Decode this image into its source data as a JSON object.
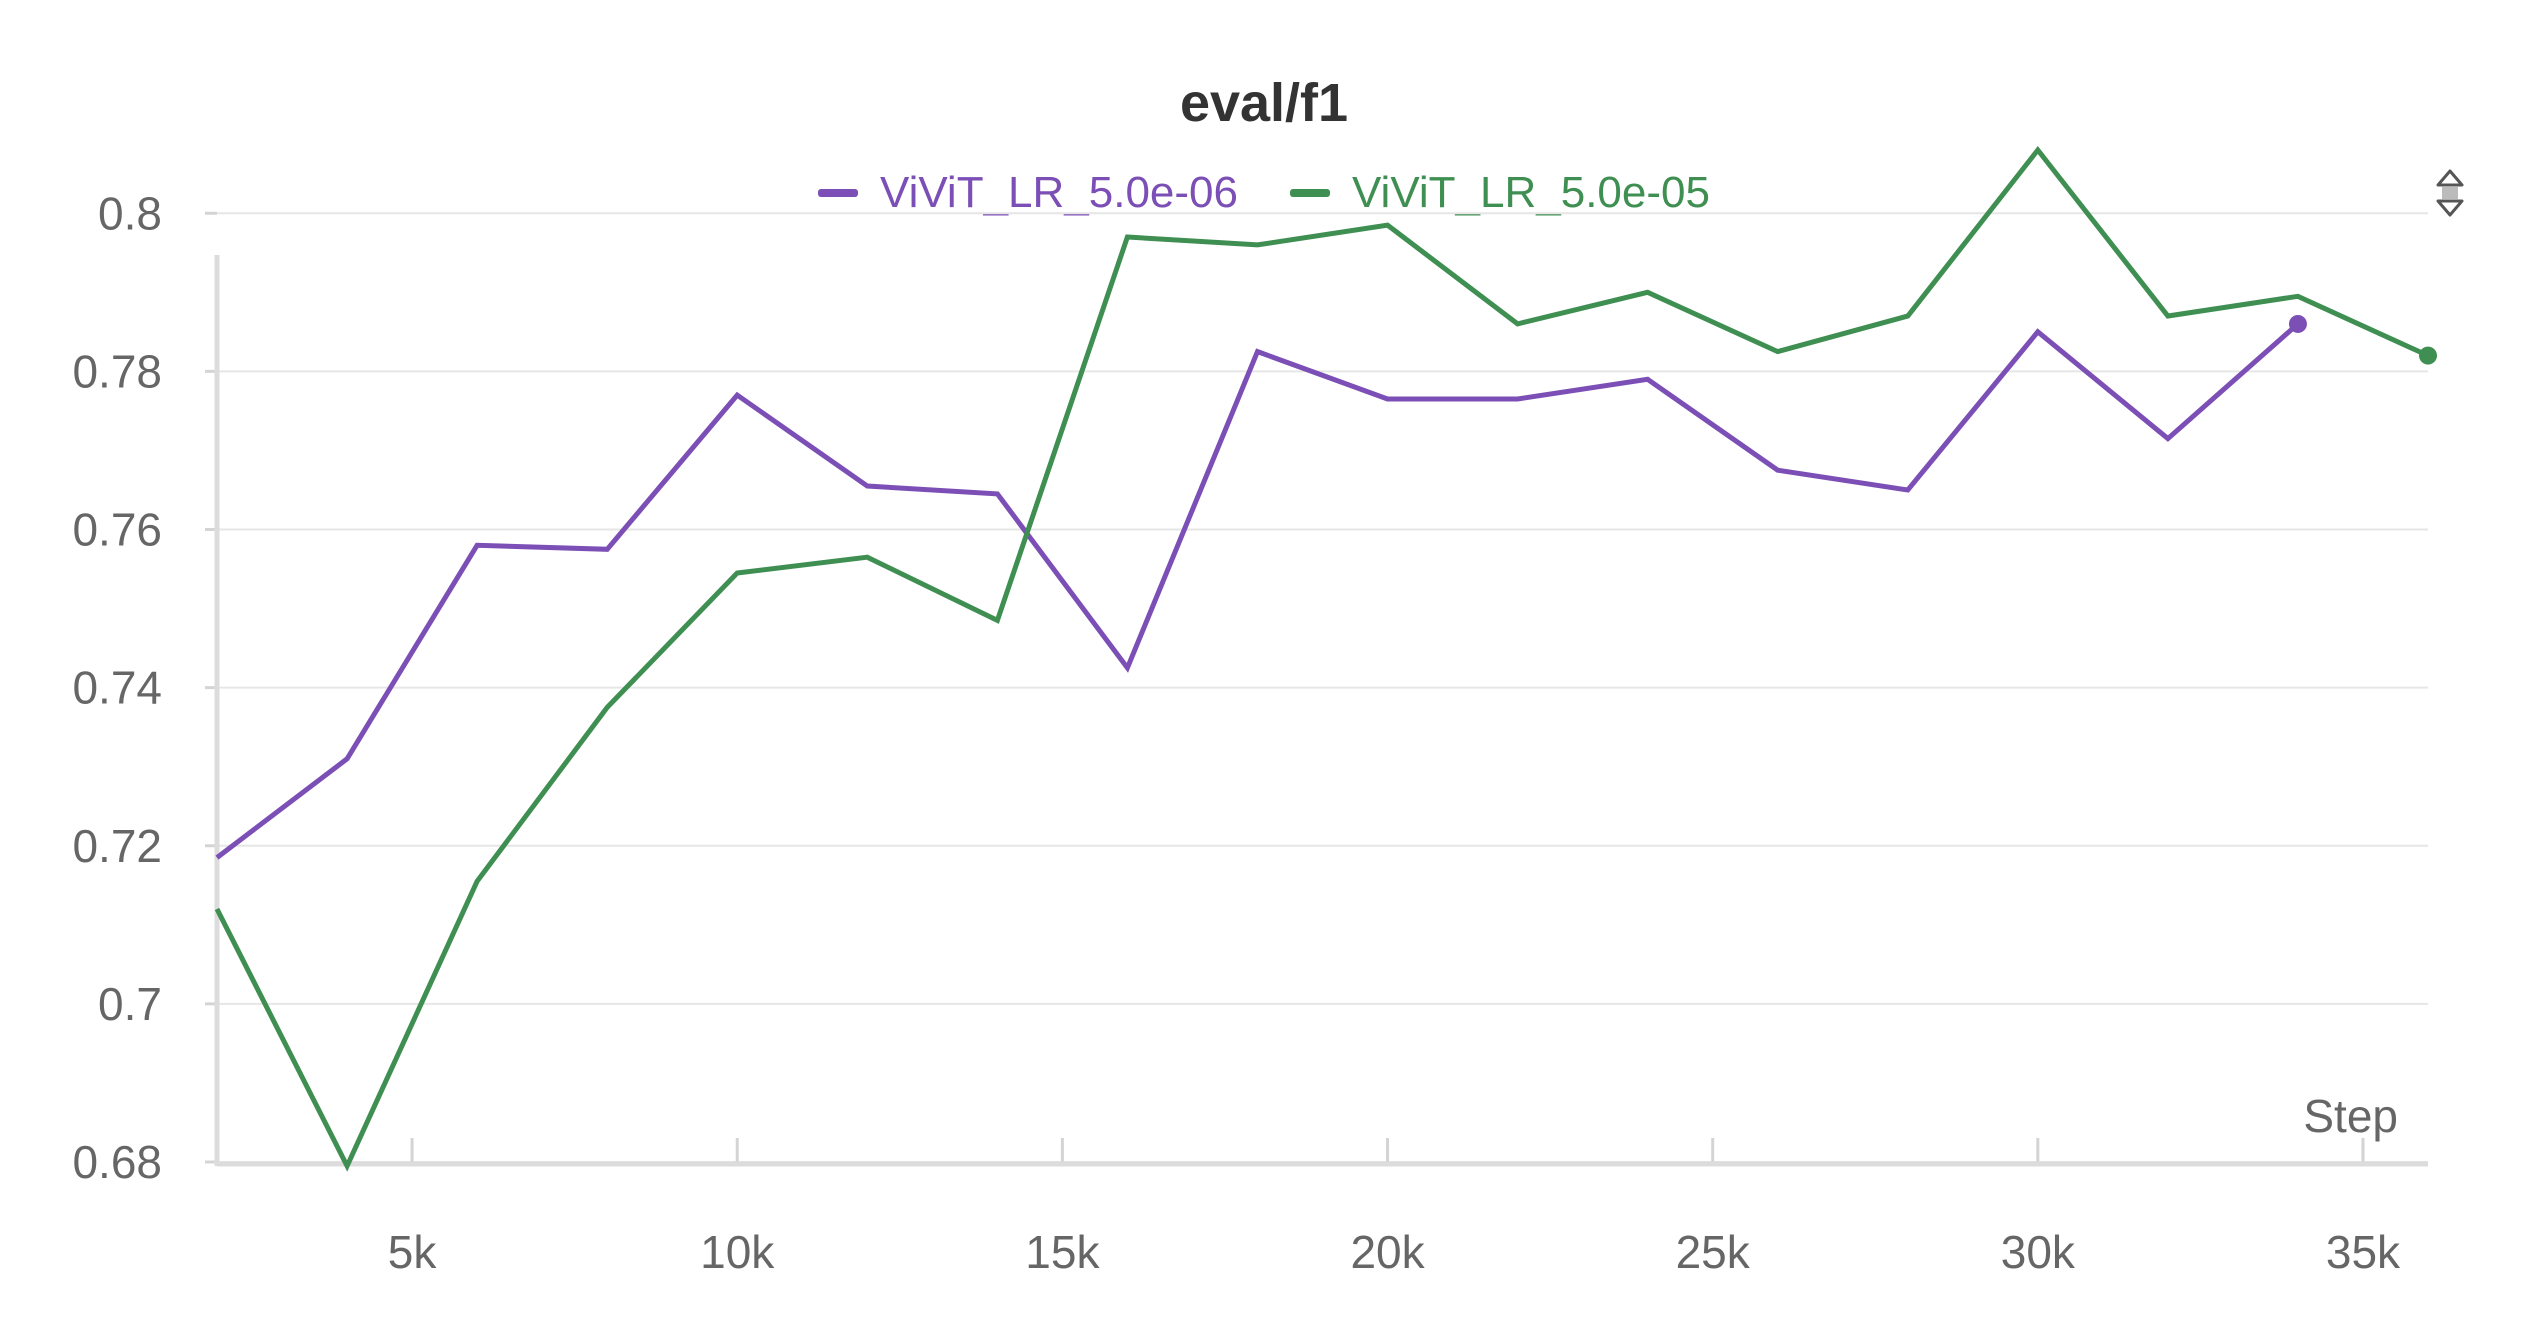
{
  "chart_data": {
    "type": "line",
    "title": "eval/f1",
    "xlabel": "Step",
    "ylabel": "",
    "xlim": [
      2000,
      36000
    ],
    "ylim": [
      0.68,
      0.808
    ],
    "x_ticks": [
      5000,
      10000,
      15000,
      20000,
      25000,
      30000,
      35000
    ],
    "x_tick_labels": [
      "5k",
      "10k",
      "15k",
      "20k",
      "25k",
      "30k",
      "35k"
    ],
    "y_ticks": [
      0.68,
      0.7,
      0.72,
      0.74,
      0.76,
      0.78,
      0.8
    ],
    "y_tick_labels": [
      "0.68",
      "0.7",
      "0.72",
      "0.74",
      "0.76",
      "0.78",
      "0.8"
    ],
    "grid": true,
    "legend_position": "top-center",
    "series": [
      {
        "name": "ViViT_LR_5.0e-06",
        "color": "#7b4fb5",
        "x": [
          2000,
          4000,
          6000,
          8000,
          10000,
          12000,
          14000,
          16000,
          18000,
          20000,
          22000,
          24000,
          26000,
          28000,
          30000,
          32000,
          34000
        ],
        "y": [
          0.7185,
          0.731,
          0.758,
          0.7575,
          0.777,
          0.7655,
          0.7645,
          0.7425,
          0.7825,
          0.7765,
          0.7765,
          0.779,
          0.7675,
          0.765,
          0.785,
          0.7715,
          0.786
        ]
      },
      {
        "name": "ViViT_LR_5.0e-05",
        "color": "#3f8f52",
        "x": [
          2000,
          4000,
          6000,
          8000,
          10000,
          12000,
          14000,
          16000,
          18000,
          20000,
          22000,
          24000,
          26000,
          28000,
          30000,
          32000,
          34000,
          36000
        ],
        "y": [
          0.712,
          0.6795,
          0.7155,
          0.7375,
          0.7545,
          0.7565,
          0.7485,
          0.797,
          0.796,
          0.7985,
          0.786,
          0.79,
          0.7825,
          0.787,
          0.808,
          0.787,
          0.7895,
          0.782
        ]
      }
    ]
  }
}
